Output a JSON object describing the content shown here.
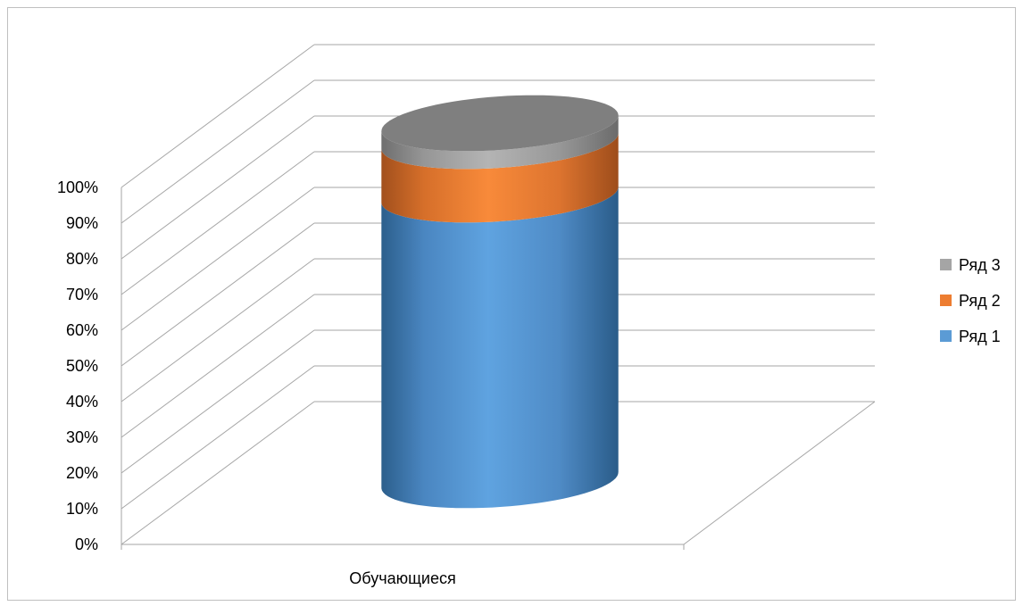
{
  "chart_data": {
    "type": "bar",
    "subtype": "3d-stacked-100-cylinder",
    "categories": [
      "Обучающиеся"
    ],
    "series": [
      {
        "name": "Ряд 1",
        "values": [
          80
        ],
        "color": "#5b9bd5"
      },
      {
        "name": "Ряд 2",
        "values": [
          15
        ],
        "color": "#ed7d31"
      },
      {
        "name": "Ряд 3",
        "values": [
          5
        ],
        "color": "#a5a5a5"
      }
    ],
    "y_ticks": [
      "0%",
      "10%",
      "20%",
      "30%",
      "40%",
      "50%",
      "60%",
      "70%",
      "80%",
      "90%",
      "100%"
    ],
    "ylim": [
      0,
      100
    ],
    "grid": true,
    "legend": {
      "position": "right",
      "entries": [
        "Ряд 3",
        "Ряд 2",
        "Ряд 1"
      ]
    }
  }
}
